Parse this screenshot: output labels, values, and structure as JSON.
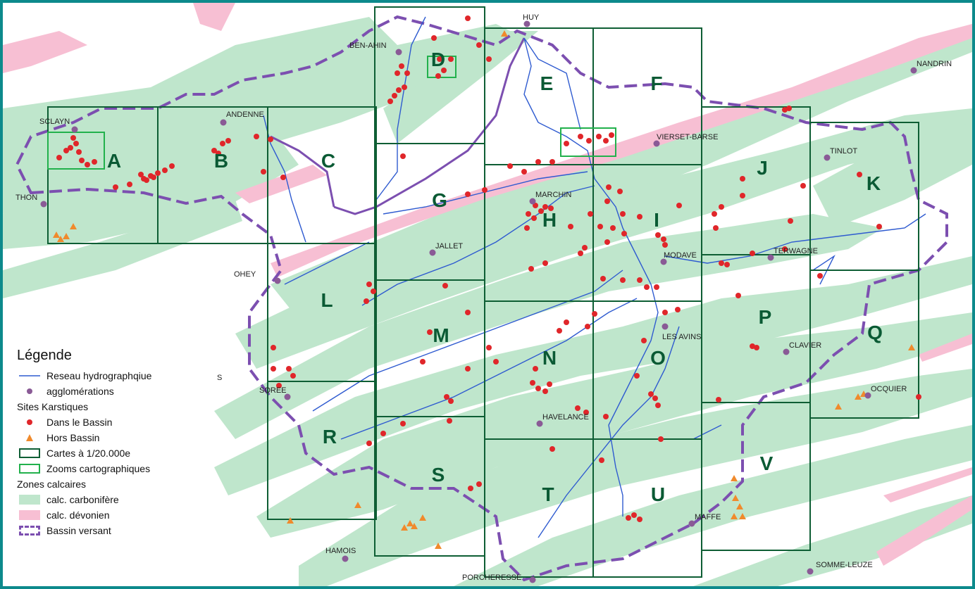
{
  "colors": {
    "frame": "#0d8a8c",
    "carbonifere": "#bfe6cc",
    "devonien": "#f7bfd3",
    "river": "#2f5bd0",
    "basin": "#7c4fb0",
    "grid": "#0e5e34",
    "zoom": "#22b14c",
    "site": "#e0262a",
    "hors": "#f08a2c",
    "town": "#8a5a96"
  },
  "towns": [
    "HUY",
    "BEN-AHIN",
    "NANDRIN",
    "SCLAYN",
    "ANDENNE",
    "VIERSET-BARSE",
    "TINLOT",
    "THON",
    "MARCHIN",
    "JALLET",
    "MODAVE",
    "TERWAGNE",
    "OHEY",
    "LES AVINS",
    "CLAVIER",
    "OCQUIER",
    "SOREE",
    "HAVELANCE",
    "MAFFE",
    "HAMOIS",
    "PORCHERESSE",
    "SOMME-LEUZE",
    "S"
  ],
  "sheets": [
    "A",
    "B",
    "C",
    "D",
    "E",
    "F",
    "G",
    "H",
    "I",
    "J",
    "K",
    "L",
    "M",
    "N",
    "O",
    "P",
    "Q",
    "R",
    "S",
    "T",
    "U",
    "V"
  ],
  "legend": {
    "title": "Légende",
    "reseau": "Reseau hydrographqiue",
    "agglomerations": "agglomérations",
    "sites_title": "Sites Karstiques",
    "dans": "Dans le Bassin",
    "hors": "Hors Bassin",
    "cartes": "Cartes à 1/20.000e",
    "zooms": "Zooms cartographiques",
    "zones_title": "Zones calcaires",
    "carbonifere": "calc. carbonifère",
    "devonien": "calc. dévonien",
    "bassin": "Bassin versant"
  }
}
